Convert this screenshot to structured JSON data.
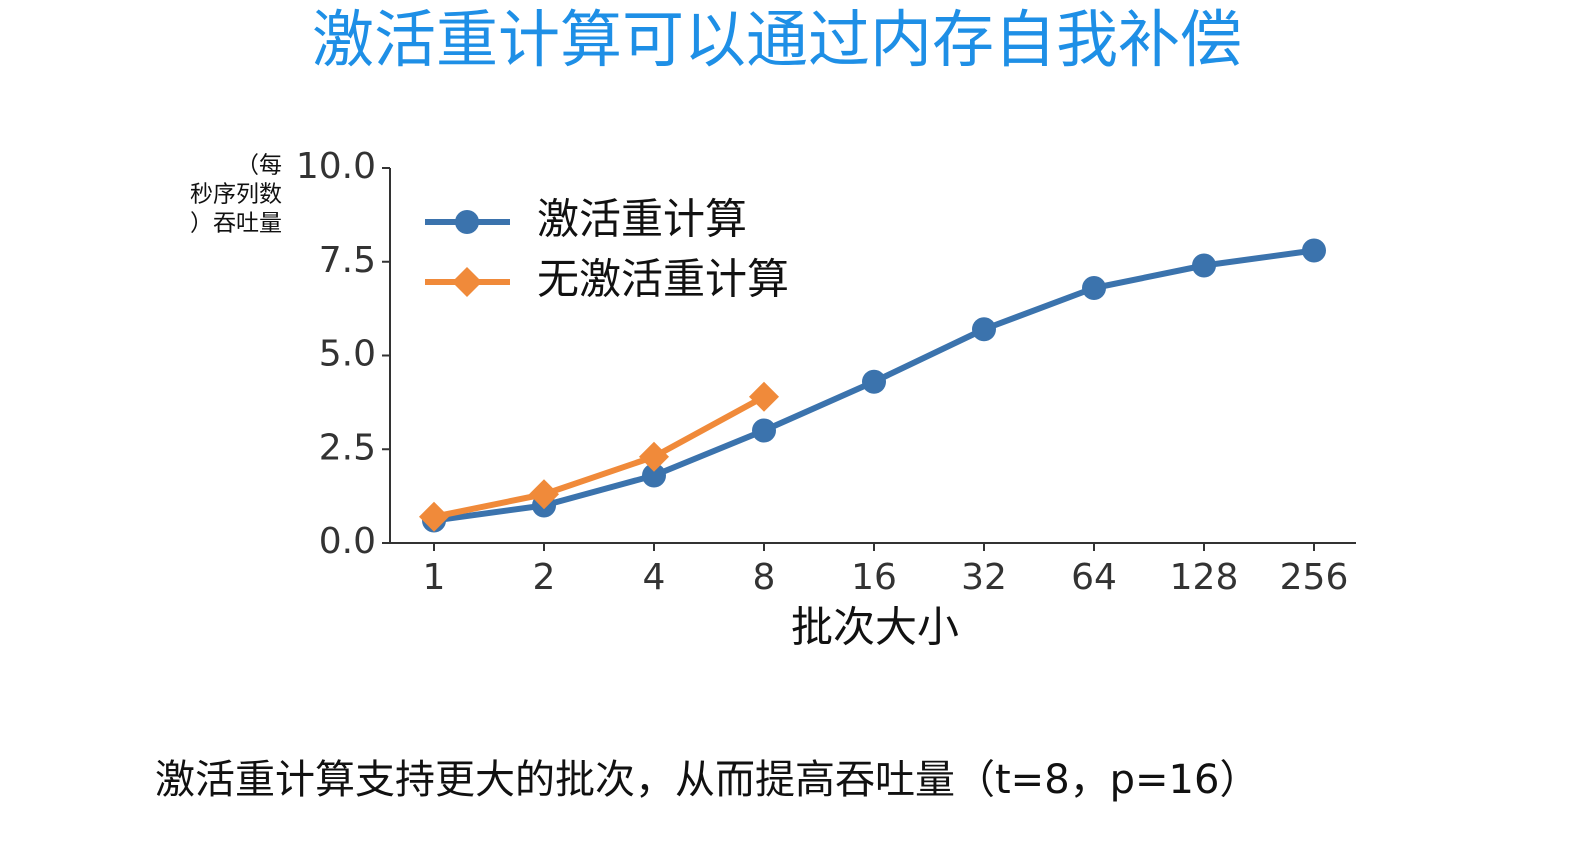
{
  "title": "激活重计算可以通过内存自我补偿",
  "caption": "激活重计算支持更大的批次，从而提高吞吐量（t=8，p=16）",
  "chart_data": {
    "type": "line",
    "y_label": [
      "（每",
      "秒序列数",
      "）吞吐量"
    ],
    "x_label": "批次大小",
    "categories": [
      "1",
      "2",
      "4",
      "8",
      "16",
      "32",
      "64",
      "128",
      "256"
    ],
    "series": [
      {
        "name": "激活重计算",
        "color": "#3b73ad",
        "marker": "circle",
        "values": [
          0.6,
          1.0,
          1.8,
          3.0,
          4.3,
          5.7,
          6.8,
          7.4,
          7.8
        ]
      },
      {
        "name": "无激活重计算",
        "color": "#f08a3a",
        "marker": "diamond",
        "values": [
          0.7,
          1.3,
          2.3,
          3.9,
          null,
          null,
          null,
          null,
          null
        ]
      }
    ],
    "ylim": [
      0,
      10
    ],
    "yticks": [
      {
        "value": 0,
        "label": "0.0"
      },
      2.5,
      {
        "value": 5,
        "label": "5.0"
      },
      {
        "value": 7.5,
        "label": "7.5"
      },
      {
        "value": 10,
        "label": "10.0"
      }
    ],
    "legend": "upper left"
  }
}
